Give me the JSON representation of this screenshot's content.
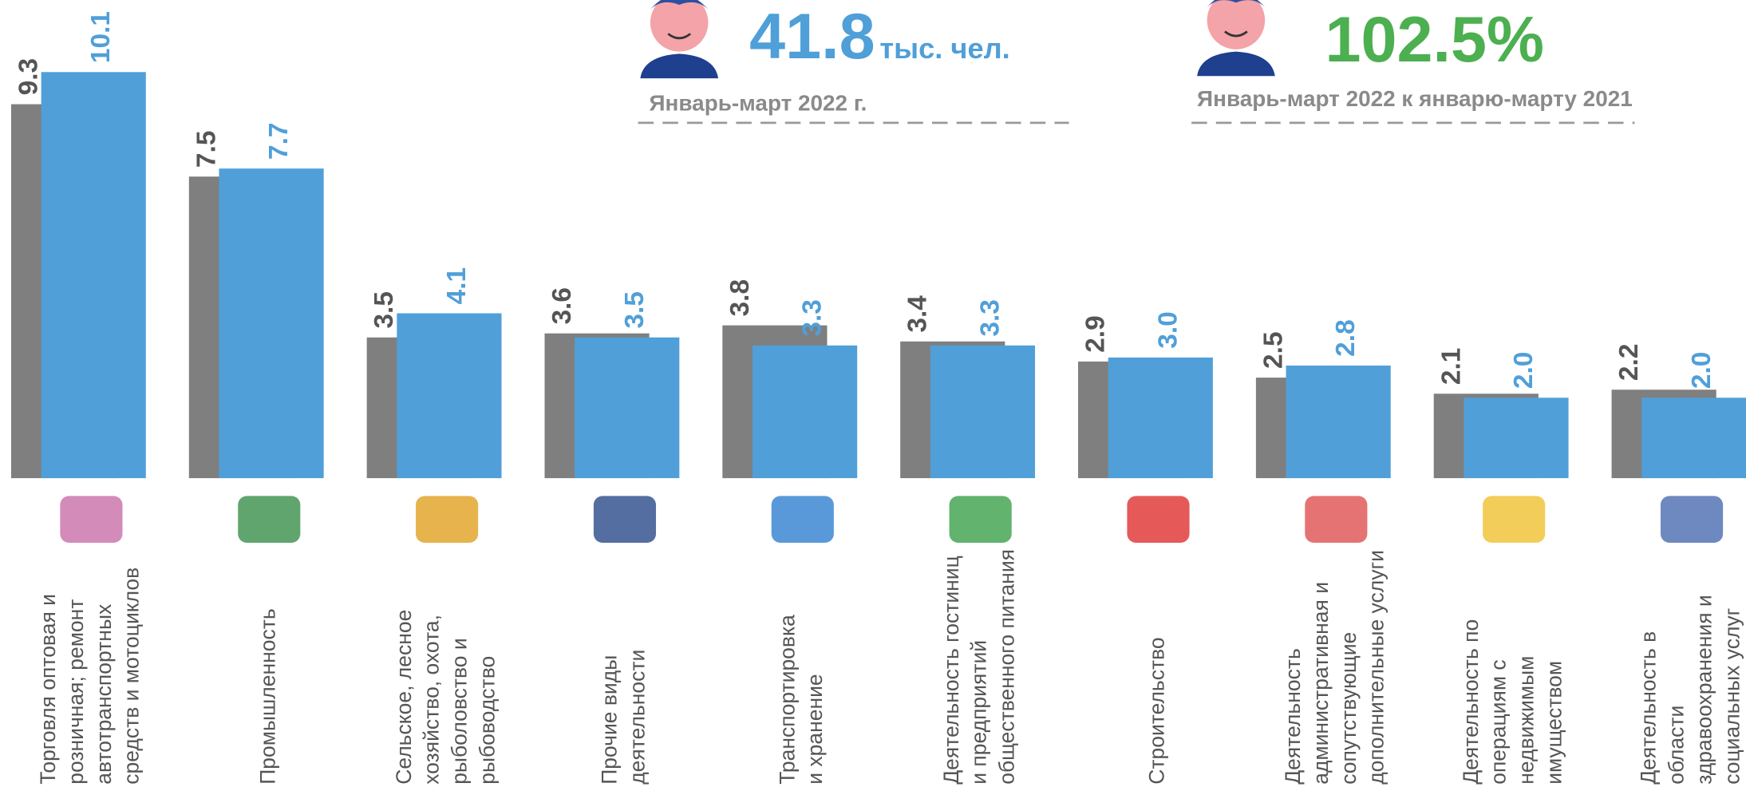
{
  "header": {
    "left": {
      "value": "41.8",
      "unit": "тыс. чел.",
      "caption": "Январь-март 2022 г."
    },
    "right": {
      "value": "102.5%",
      "caption": "Январь-март 2022 к январю-марту 2021"
    }
  },
  "chart_data": {
    "type": "bar",
    "categories": [
      [
        "Торговля оптовая и",
        "розничная; ремонт",
        "автотранспортных",
        "средств и мотоциклов"
      ],
      [
        "Промышленность"
      ],
      [
        "Сельское, лесное",
        "хозяйство, охота,",
        "рыболовство и",
        "рыбоводство"
      ],
      [
        "Прочие виды",
        "деятельности"
      ],
      [
        "Транспортировка",
        "и хранение"
      ],
      [
        "Деятельность гостиниц",
        "и предприятий",
        "общественного питания"
      ],
      [
        "Строительство"
      ],
      [
        "Деятельность",
        "административная и",
        "сопутствующие",
        "дополнительные услуги"
      ],
      [
        "Деятельность по",
        "операциям с",
        "недвижимым",
        "имуществом"
      ],
      [
        "Деятельность в",
        "области",
        "здравоохранения и",
        "социальных услуг"
      ]
    ],
    "series": [
      {
        "color": "#7f7f7f",
        "values": [
          9.3,
          7.5,
          3.5,
          3.6,
          3.8,
          3.4,
          2.9,
          2.5,
          2.1,
          2.2
        ],
        "value_labels": [
          "9.3",
          "7.5",
          "3.5",
          "3.6",
          "3.8",
          "3.4",
          "2.9",
          "2.5",
          "2.1",
          "2.2"
        ]
      },
      {
        "color": "#509fd9",
        "values": [
          10.1,
          7.7,
          4.1,
          3.5,
          3.3,
          3.3,
          3.0,
          2.8,
          2.0,
          2.0
        ],
        "value_labels": [
          "10.1",
          "7.7",
          "4.1",
          "3.5",
          "3.3",
          "3.3",
          "3.0",
          "2.8",
          "2.0",
          "2.0"
        ]
      }
    ]
  }
}
